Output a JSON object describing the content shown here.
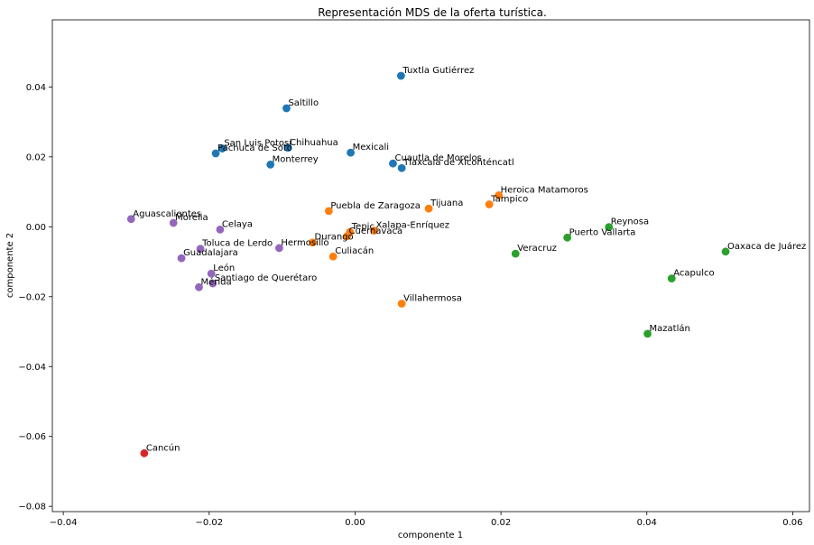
{
  "chart_data": {
    "type": "scatter",
    "title": "Representación MDS de la oferta turística.",
    "xlabel": "componente 1",
    "ylabel": "componente 2",
    "xlim": [
      -0.0415,
      0.0623
    ],
    "ylim": [
      -0.0815,
      0.0592
    ],
    "xticks": [
      -0.04,
      -0.02,
      0.0,
      0.02,
      0.04,
      0.06
    ],
    "xtick_labels": [
      "−0.04",
      "−0.02",
      "0.00",
      "0.02",
      "0.04",
      "0.06"
    ],
    "yticks": [
      -0.08,
      -0.06,
      -0.04,
      -0.02,
      0.0,
      0.02,
      0.04
    ],
    "ytick_labels": [
      "−0.08",
      "−0.06",
      "−0.04",
      "−0.02",
      "0.00",
      "0.02",
      "0.04"
    ],
    "grid": false,
    "colors": [
      "#1f77b4",
      "#ff7f0e",
      "#2ca02c",
      "#d62728",
      "#9467bd"
    ],
    "points": [
      {
        "label": "Tuxtla Gutiérrez",
        "x": 0.0063,
        "y": 0.0432,
        "group": 0
      },
      {
        "label": "Saltillo",
        "x": -0.0094,
        "y": 0.0339,
        "group": 0
      },
      {
        "label": "San Luis Potosí",
        "x": -0.0182,
        "y": 0.0224,
        "group": 0
      },
      {
        "label": "Chihuahua",
        "x": -0.0092,
        "y": 0.0226,
        "group": 0
      },
      {
        "label": "Pachuca de Soto",
        "x": -0.0191,
        "y": 0.021,
        "group": 0
      },
      {
        "label": "Mexicali",
        "x": -0.0006,
        "y": 0.0212,
        "group": 0
      },
      {
        "label": "Monterrey",
        "x": -0.0116,
        "y": 0.0178,
        "group": 0
      },
      {
        "label": "Cuautla de Morelos",
        "x": 0.0052,
        "y": 0.0181,
        "group": 0
      },
      {
        "label": "Tlaxcala de Xicohténcatl",
        "x": 0.0064,
        "y": 0.0168,
        "group": 0
      },
      {
        "label": "Heroica Matamoros",
        "x": 0.0197,
        "y": 0.009,
        "group": 1
      },
      {
        "label": "Tampico",
        "x": 0.0184,
        "y": 0.0064,
        "group": 1
      },
      {
        "label": "Tijuana",
        "x": 0.0101,
        "y": 0.0052,
        "group": 1
      },
      {
        "label": "Puebla de Zaragoza",
        "x": -0.0036,
        "y": 0.0045,
        "group": 1
      },
      {
        "label": "Xalapa-Enríquez",
        "x": 0.0026,
        "y": -0.0011,
        "group": 1
      },
      {
        "label": "Tepic",
        "x": -0.0007,
        "y": -0.0015,
        "group": 1
      },
      {
        "label": "Cuernavaca",
        "x": -0.0011,
        "y": -0.0027,
        "group": 1
      },
      {
        "label": "Durango",
        "x": -0.0058,
        "y": -0.0045,
        "group": 1
      },
      {
        "label": "Culiacán",
        "x": -0.003,
        "y": -0.0085,
        "group": 1
      },
      {
        "label": "Villahermosa",
        "x": 0.0064,
        "y": -0.022,
        "group": 1
      },
      {
        "label": "Reynosa",
        "x": 0.0348,
        "y": -0.0001,
        "group": 2
      },
      {
        "label": "Puerto Vallarta",
        "x": 0.0291,
        "y": -0.0031,
        "group": 2
      },
      {
        "label": "Oaxaca de Juárez",
        "x": 0.0508,
        "y": -0.0071,
        "group": 2
      },
      {
        "label": "Veracruz",
        "x": 0.022,
        "y": -0.0077,
        "group": 2
      },
      {
        "label": "Acapulco",
        "x": 0.0434,
        "y": -0.0148,
        "group": 2
      },
      {
        "label": "Mazatlán",
        "x": 0.0401,
        "y": -0.0306,
        "group": 2
      },
      {
        "label": "Cancún",
        "x": -0.0289,
        "y": -0.0648,
        "group": 3
      },
      {
        "label": "Aguascalientes",
        "x": -0.0307,
        "y": 0.0022,
        "group": 4
      },
      {
        "label": "Morelia",
        "x": -0.0249,
        "y": 0.0011,
        "group": 4
      },
      {
        "label": "Celaya",
        "x": -0.0185,
        "y": -0.0008,
        "group": 4
      },
      {
        "label": "Toluca de Lerdo",
        "x": -0.0212,
        "y": -0.0063,
        "group": 4
      },
      {
        "label": "Hermosillo",
        "x": -0.0104,
        "y": -0.0061,
        "group": 4
      },
      {
        "label": "Guadalajara",
        "x": -0.0238,
        "y": -0.009,
        "group": 4
      },
      {
        "label": "León",
        "x": -0.0197,
        "y": -0.0134,
        "group": 4
      },
      {
        "label": "Santiago de Querétaro",
        "x": -0.0195,
        "y": -0.0162,
        "group": 4
      },
      {
        "label": "Mérida",
        "x": -0.0214,
        "y": -0.0173,
        "group": 4
      }
    ]
  }
}
